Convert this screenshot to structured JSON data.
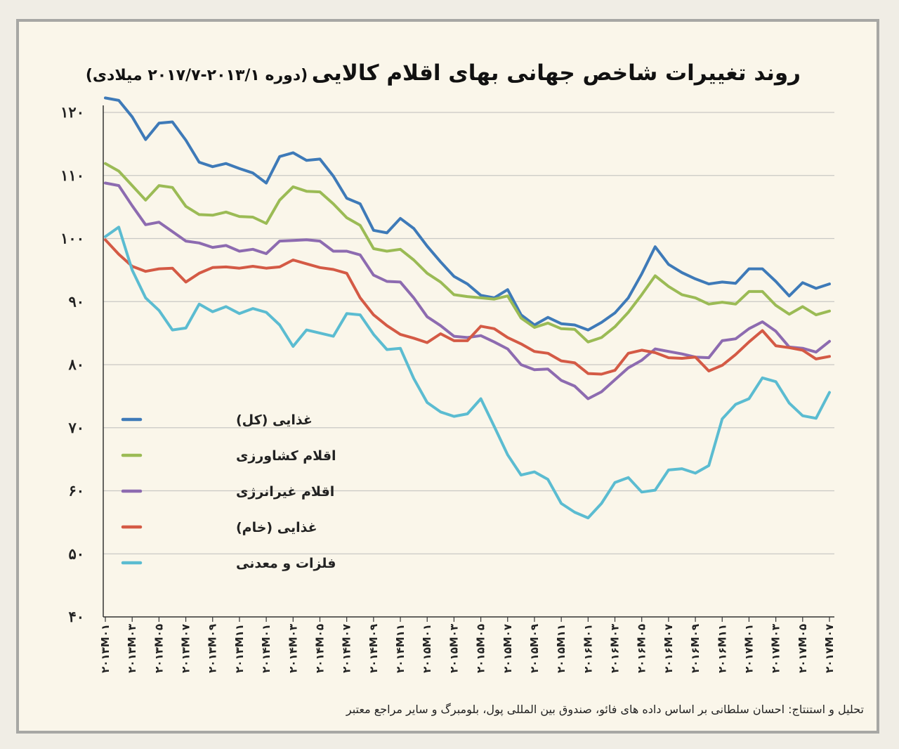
{
  "colors": {
    "background": "#f0ede5",
    "panel": "#faf6ea",
    "frame": "#a7a7a4",
    "grid": "#c9c8c4",
    "axis": "#333333"
  },
  "title": {
    "main": "روند تغییرات شاخص جهانی بهای اقلام کالایی",
    "sub": "(دوره ۲۰۱۳/۱-۲۰۱۷/۷ میلادی)"
  },
  "source": "تحلیل و استنتاج: احسان سلطانی بر اساس داده های فائو، صندوق بین المللی پول، بلومبرگ و سایر مراجع معتبر",
  "chart_data": {
    "type": "line",
    "title": "روند تغییرات شاخص جهانی بهای اقلام کالایی (دوره ۲۰۱۳/۱-۲۰۱۷/۷ میلادی)",
    "xlabel": "",
    "ylabel": "",
    "ylim": [
      40,
      120
    ],
    "yticks": [
      40,
      50,
      60,
      70,
      80,
      90,
      100,
      110,
      120
    ],
    "yticklabels": [
      "۴۰",
      "۵۰",
      "۶۰",
      "۷۰",
      "۸۰",
      "۹۰",
      "۱۰۰",
      "۱۱۰",
      "۱۲۰"
    ],
    "grid": true,
    "legend_position": "left-middle",
    "x": [
      "2013M01",
      "2013M02",
      "2013M03",
      "2013M04",
      "2013M05",
      "2013M06",
      "2013M07",
      "2013M08",
      "2013M09",
      "2013M10",
      "2013M11",
      "2013M12",
      "2014M01",
      "2014M02",
      "2014M03",
      "2014M04",
      "2014M05",
      "2014M06",
      "2014M07",
      "2014M08",
      "2014M09",
      "2014M10",
      "2014M11",
      "2014M12",
      "2015M01",
      "2015M02",
      "2015M03",
      "2015M04",
      "2015M05",
      "2015M06",
      "2015M07",
      "2015M08",
      "2015M09",
      "2015M10",
      "2015M11",
      "2015M12",
      "2016M01",
      "2016M02",
      "2016M03",
      "2016M04",
      "2016M05",
      "2016M06",
      "2016M07",
      "2016M08",
      "2016M09",
      "2016M10",
      "2016M11",
      "2016M12",
      "2017M01",
      "2017M02",
      "2017M03",
      "2017M04",
      "2017M05",
      "2017M06",
      "2017M07"
    ],
    "xticklabels": [
      "۲۰۱۳M۰۱",
      "۲۰۱۳M۰۳",
      "۲۰۱۳M۰۵",
      "۲۰۱۳M۰۷",
      "۲۰۱۳M۰۹",
      "۲۰۱۳M۱۱",
      "۲۰۱۴M۰۱",
      "۲۰۱۴M۰۳",
      "۲۰۱۴M۰۵",
      "۲۰۱۴M۰۷",
      "۲۰۱۴M۰۹",
      "۲۰۱۴M۱۱",
      "۲۰۱۵M۰۱",
      "۲۰۱۵M۰۳",
      "۲۰۱۵M۰۵",
      "۲۰۱۵M۰۷",
      "۲۰۱۵M۰۹",
      "۲۰۱۵M۱۱",
      "۲۰۱۶M۰۱",
      "۲۰۱۶M۰۳",
      "۲۰۱۶M۰۵",
      "۲۰۱۶M۰۷",
      "۲۰۱۶M۰۹",
      "۲۰۱۶M۱۱",
      "۲۰۱۷M۰۱",
      "۲۰۱۷M۰۳",
      "۲۰۱۷M۰۵",
      "۲۰۱۷M۰۷"
    ],
    "series": [
      {
        "name": "غذایی (کل)",
        "color": "#3e7ab8",
        "values": [
          122.3,
          121.9,
          119.3,
          115.7,
          118.3,
          118.5,
          115.6,
          112.1,
          111.4,
          111.9,
          111.1,
          110.4,
          108.8,
          113.0,
          113.6,
          112.4,
          112.6,
          109.9,
          106.4,
          105.5,
          101.3,
          100.9,
          103.2,
          101.6,
          98.8,
          96.3,
          94.0,
          92.8,
          91.0,
          90.6,
          91.9,
          87.9,
          86.3,
          87.5,
          86.5,
          86.3,
          85.5,
          86.7,
          88.2,
          90.6,
          94.4,
          98.7,
          95.9,
          94.6,
          93.6,
          92.8,
          93.1,
          92.9,
          95.2,
          95.2,
          93.2,
          90.9,
          93.0,
          92.1,
          92.8
        ]
      },
      {
        "name": "اقلام کشاورزی",
        "color": "#9bbb55",
        "values": [
          111.9,
          110.7,
          108.4,
          106.1,
          108.4,
          108.1,
          105.1,
          103.8,
          103.7,
          104.2,
          103.5,
          103.4,
          102.4,
          106.1,
          108.2,
          107.5,
          107.4,
          105.5,
          103.3,
          102.1,
          98.4,
          98.0,
          98.3,
          96.6,
          94.5,
          93.1,
          91.1,
          90.8,
          90.6,
          90.4,
          90.9,
          87.4,
          85.9,
          86.6,
          85.7,
          85.6,
          83.6,
          84.3,
          86.0,
          88.3,
          91.1,
          94.1,
          92.4,
          91.1,
          90.6,
          89.6,
          89.9,
          89.6,
          91.6,
          91.6,
          89.4,
          88.0,
          89.2,
          87.9,
          88.5
        ]
      },
      {
        "name": "اقلام غیرانرژی",
        "color": "#8d6bb0",
        "values": [
          108.8,
          108.4,
          105.2,
          102.2,
          102.6,
          101.1,
          99.6,
          99.3,
          98.6,
          98.9,
          98.0,
          98.3,
          97.6,
          99.6,
          99.7,
          99.8,
          99.6,
          98.0,
          98.0,
          97.4,
          94.2,
          93.2,
          93.1,
          90.6,
          87.6,
          86.2,
          84.5,
          84.3,
          84.6,
          83.6,
          82.5,
          80.0,
          79.2,
          79.3,
          77.5,
          76.6,
          74.6,
          75.7,
          77.6,
          79.5,
          80.7,
          82.5,
          82.1,
          81.7,
          81.2,
          81.1,
          83.8,
          84.1,
          85.7,
          86.8,
          85.3,
          82.8,
          82.6,
          82.0,
          83.7
        ]
      },
      {
        "name": "غذایی (خام)",
        "color": "#d45a45",
        "values": [
          99.8,
          97.5,
          95.6,
          94.8,
          95.2,
          95.3,
          93.1,
          94.5,
          95.4,
          95.5,
          95.3,
          95.6,
          95.3,
          95.5,
          96.6,
          96.0,
          95.4,
          95.1,
          94.5,
          90.6,
          87.9,
          86.2,
          84.8,
          84.2,
          83.5,
          84.9,
          83.8,
          83.8,
          86.1,
          85.7,
          84.3,
          83.3,
          82.1,
          81.8,
          80.6,
          80.3,
          78.6,
          78.5,
          79.1,
          81.8,
          82.3,
          81.9,
          81.1,
          81.0,
          81.2,
          79.0,
          79.9,
          81.6,
          83.6,
          85.4,
          83.0,
          82.7,
          82.3,
          80.9,
          81.3
        ]
      },
      {
        "name": "فلزات و معدنی",
        "color": "#5bbcd1",
        "values": [
          100.3,
          101.8,
          95.0,
          90.6,
          88.6,
          85.5,
          85.8,
          89.6,
          88.4,
          89.2,
          88.1,
          88.9,
          88.3,
          86.3,
          82.9,
          85.5,
          85.0,
          84.5,
          88.1,
          87.9,
          84.8,
          82.4,
          82.6,
          77.8,
          74.0,
          72.5,
          71.8,
          72.2,
          74.6,
          70.2,
          65.7,
          62.5,
          63.0,
          61.8,
          58.0,
          56.6,
          55.7,
          58.0,
          61.3,
          62.1,
          59.8,
          60.1,
          63.3,
          63.5,
          62.8,
          64.0,
          71.4,
          73.7,
          74.6,
          77.9,
          77.3,
          73.9,
          71.9,
          71.5,
          75.6
        ]
      }
    ]
  }
}
